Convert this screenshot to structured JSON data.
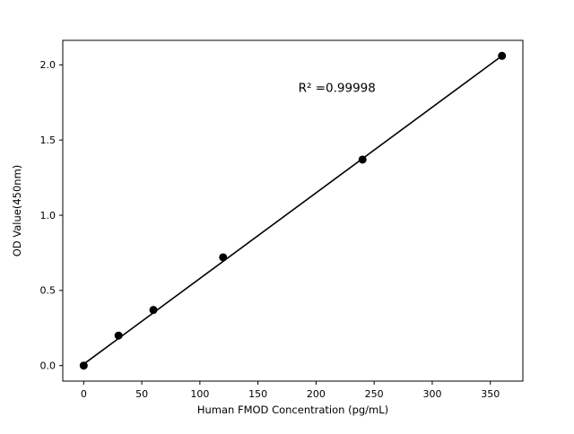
{
  "chart_data": {
    "type": "scatter",
    "title": "",
    "xlabel": "Human FMOD Concentration (pg/mL)",
    "ylabel": "OD Value(450nm)",
    "x": [
      0,
      30,
      60,
      120,
      240,
      360
    ],
    "y": [
      0.0,
      0.2,
      0.37,
      0.72,
      1.37,
      2.06
    ],
    "fit_line": {
      "x1": 0,
      "y1": 0.01,
      "x2": 360,
      "y2": 2.06
    },
    "annotation": "R² =0.99998",
    "annotation_xy": [
      218,
      1.82
    ],
    "xticks": [
      "0",
      "50",
      "100",
      "150",
      "200",
      "250",
      "300",
      "350"
    ],
    "yticks": [
      "0.0",
      "0.5",
      "1.0",
      "1.5",
      "2.0"
    ],
    "xlim": [
      -18,
      378
    ],
    "ylim": [
      -0.103,
      2.163
    ],
    "grid": false,
    "legend": "none",
    "marker_color": "#000000",
    "line_color": "#000000",
    "axis_color": "#000000",
    "background_color": "#ffffff"
  }
}
